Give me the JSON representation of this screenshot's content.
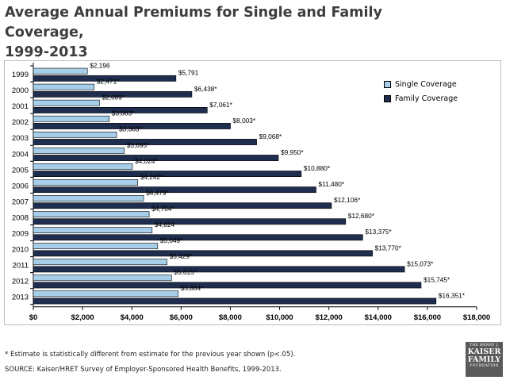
{
  "title_line1": "Average Annual Premiums for Single and Family Coverage,",
  "title_line2": "1999-2013",
  "footnote": "* Estimate is statistically different from estimate for the previous year shown (p<.05).",
  "source": "SOURCE:  Kaiser/HRET Survey of Employer-Sponsored Health Benefits, 1999-2013.",
  "logo": {
    "line1": "THE HENRY J.",
    "line2": "KAISER",
    "line3": "FAMILY",
    "line4": "FOUNDATION"
  },
  "colors": {
    "single": "#a6cee8",
    "family": "#1f2d4e"
  },
  "chart_data": {
    "type": "bar",
    "orientation": "horizontal",
    "categories": [
      "1999",
      "2000",
      "2001",
      "2002",
      "2003",
      "2004",
      "2005",
      "2006",
      "2007",
      "2008",
      "2009",
      "2010",
      "2011",
      "2012",
      "2013"
    ],
    "series": [
      {
        "name": "Single Coverage",
        "values": [
          2196,
          2471,
          2689,
          3083,
          3383,
          3695,
          4024,
          4242,
          4479,
          4704,
          4824,
          5049,
          5429,
          5615,
          5884
        ],
        "labels": [
          "$2,196",
          "$2,471*",
          "$2,689*",
          "$3,083*",
          "$3,383*",
          "$3,695*",
          "$4,024*",
          "$4,242*",
          "$4,479*",
          "$4,704*",
          "$4,824",
          "$5,049*",
          "$5,429*",
          "$5,615*",
          "$5,884*"
        ]
      },
      {
        "name": "Family Coverage",
        "values": [
          5791,
          6438,
          7061,
          8003,
          9068,
          9950,
          10880,
          11480,
          12106,
          12680,
          13375,
          13770,
          15073,
          15745,
          16351
        ],
        "labels": [
          "$5,791",
          "$6,438*",
          "$7,061*",
          "$8,003*",
          "$9,068*",
          "$9,950*",
          "$10,880*",
          "$11,480*",
          "$12,106*",
          "$12,680*",
          "$13,375*",
          "$13,770*",
          "$15,073*",
          "$15,745*",
          "$16,351*"
        ]
      }
    ],
    "xlim": [
      0,
      18000
    ],
    "xticks": [
      "$0",
      "$2,000",
      "$4,000",
      "$6,000",
      "$8,000",
      "$10,000",
      "$12,000",
      "$14,000",
      "$16,000",
      "$18,000"
    ],
    "grid": false,
    "legend_position": "right"
  }
}
